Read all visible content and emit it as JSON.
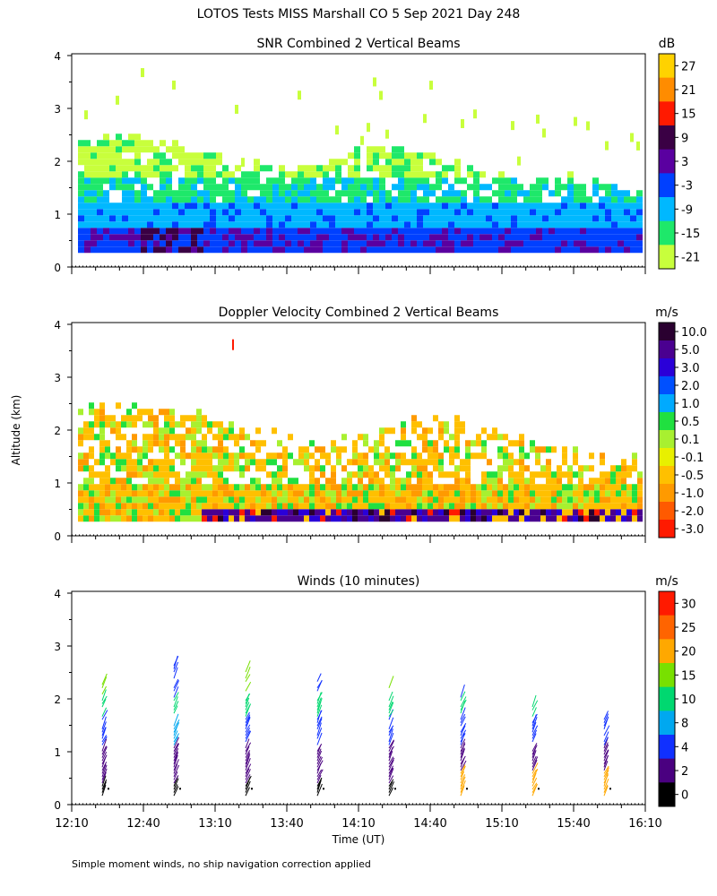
{
  "figure": {
    "title": "LOTOS Tests MISS Marshall CO    5 Sep 2021 Day 248",
    "xlabel": "Time (UT)",
    "ylabel": "Altitude (km)",
    "footnote": "Simple moment winds, no ship navigation correction applied"
  },
  "chart_data": [
    {
      "id": "snr",
      "type": "heatmap",
      "title": "SNR Combined 2 Vertical Beams",
      "xlabel": "Time (UT)",
      "ylabel": "Altitude (km)",
      "xlim": [
        "12:10",
        "16:10"
      ],
      "ylim": [
        0,
        4
      ],
      "x_ticks": [
        "12:10",
        "12:40",
        "13:10",
        "13:40",
        "14:10",
        "14:40",
        "15:10",
        "15:40",
        "16:10"
      ],
      "y_ticks": [
        "0",
        "1",
        "2",
        "3",
        "4"
      ],
      "colorbar": {
        "unit": "dB",
        "tick_labels": [
          "27",
          "21",
          "15",
          "9",
          "3",
          "-3",
          "-9",
          "-15",
          "-21"
        ],
        "colors": [
          "#ffd200",
          "#ff8c00",
          "#ff1a00",
          "#3a0044",
          "#5a00a0",
          "#0040ff",
          "#00b8ff",
          "#1ee86a",
          "#c8ff3c"
        ]
      },
      "layers": [
        {
          "altitude_km": [
            0.25,
            0.7
          ],
          "value_db": -3,
          "color": "#0040ff"
        },
        {
          "altitude_km": [
            0.7,
            1.2
          ],
          "value_db": -9,
          "color": "#00b8ff"
        },
        {
          "altitude_km": [
            1.2,
            1.7
          ],
          "value_db": -15,
          "color": "#1ee86a"
        },
        {
          "altitude_km": [
            1.7,
            2.3
          ],
          "value_db": -21,
          "color": "#c8ff3c"
        }
      ]
    },
    {
      "id": "doppler",
      "type": "heatmap",
      "title": "Doppler Velocity Combined 2 Vertical Beams",
      "xlabel": "Time (UT)",
      "ylabel": "Altitude (km)",
      "xlim": [
        "12:10",
        "16:10"
      ],
      "ylim": [
        0,
        4
      ],
      "x_ticks": [
        "12:10",
        "12:40",
        "13:10",
        "13:40",
        "14:10",
        "14:40",
        "15:10",
        "15:40",
        "16:10"
      ],
      "y_ticks": [
        "0",
        "1",
        "2",
        "3",
        "4"
      ],
      "colorbar": {
        "unit": "m/s",
        "tick_labels": [
          "10.0",
          "5.0",
          "3.0",
          "2.0",
          "1.0",
          "0.5",
          "0.1",
          "-0.1",
          "-0.5",
          "-1.0",
          "-2.0",
          "-3.0"
        ],
        "colors": [
          "#2a0030",
          "#4a0090",
          "#2a00d8",
          "#0050ff",
          "#00aaff",
          "#20e040",
          "#a8f030",
          "#e8f000",
          "#ffc000",
          "#ff9a00",
          "#ff5a00",
          "#ff1a00"
        ]
      }
    },
    {
      "id": "winds",
      "type": "scatter",
      "title": "Winds (10 minutes)",
      "xlabel": "Time (UT)",
      "ylabel": "Altitude (km)",
      "xlim": [
        "12:10",
        "16:10"
      ],
      "ylim": [
        0,
        4
      ],
      "x_ticks": [
        "12:10",
        "12:40",
        "13:10",
        "13:40",
        "14:10",
        "14:40",
        "15:10",
        "15:40",
        "16:10"
      ],
      "y_ticks": [
        "0",
        "1",
        "2",
        "3",
        "4"
      ],
      "profile_times": [
        "12:25",
        "12:55",
        "13:25",
        "13:55",
        "14:25",
        "14:55",
        "15:25",
        "15:55"
      ],
      "max_altitude_km": [
        2.4,
        2.65,
        2.65,
        2.35,
        2.25,
        2.1,
        1.9,
        1.6
      ],
      "colorbar": {
        "unit": "m/s",
        "tick_labels": [
          "30",
          "25",
          "20",
          "15",
          "10",
          "8",
          "4",
          "2",
          "0"
        ],
        "colors": [
          "#ff1a00",
          "#ff6400",
          "#ffa800",
          "#78e000",
          "#00d870",
          "#00a8f0",
          "#1030ff",
          "#4a0080",
          "#000000"
        ]
      }
    }
  ]
}
